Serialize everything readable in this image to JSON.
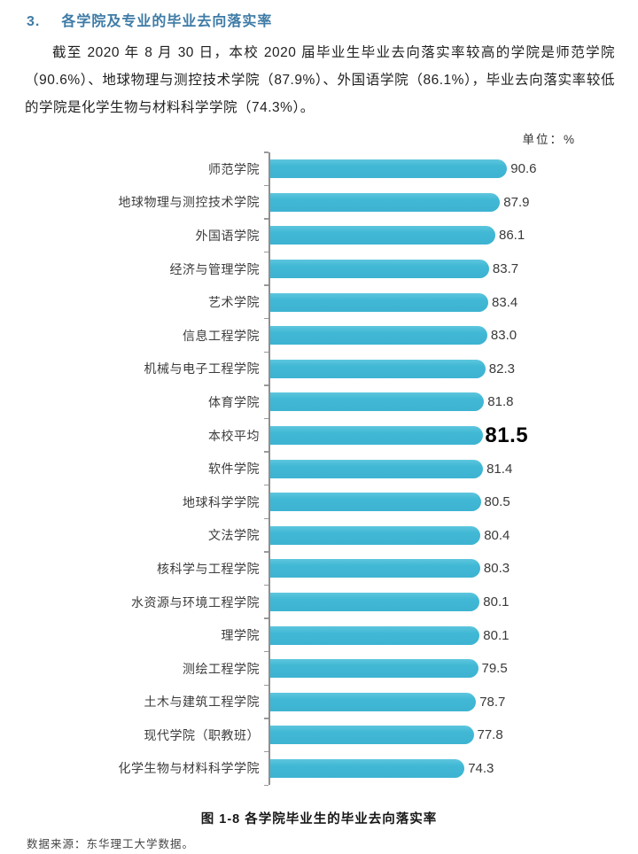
{
  "heading": {
    "number": "3.",
    "title": "各学院及专业的毕业去向落实率"
  },
  "paragraph": "截至 2020 年 8 月 30 日，本校 2020 届毕业生毕业去向落实率较高的学院是师范学院（90.6%）、地球物理与测控技术学院（87.9%）、外国语学院（86.1%），毕业去向落实率较低的学院是化学生物与材料科学学院（74.3%）。",
  "unit_label": "单位：%",
  "caption": "图 1-8 各学院毕业生的毕业去向落实率",
  "source": "数据来源：东华理工大学数据。",
  "colors": {
    "heading_blue": "#3e7ba6",
    "bar_cyan": "#41b8d5",
    "axis_gray": "#8f8f8f",
    "highlight_value": "#000000"
  },
  "chart_data": {
    "type": "bar",
    "orientation": "horizontal",
    "title": "图 1-8 各学院毕业生的毕业去向落实率",
    "unit": "%",
    "xlim": [
      0,
      95
    ],
    "grid": false,
    "legend": false,
    "bar_color": "#41b8d5",
    "highlight_index": 8,
    "highlight_category": "本校平均",
    "categories": [
      "师范学院",
      "地球物理与测控技术学院",
      "外国语学院",
      "经济与管理学院",
      "艺术学院",
      "信息工程学院",
      "机械与电子工程学院",
      "体育学院",
      "本校平均",
      "软件学院",
      "地球科学学院",
      "文法学院",
      "核科学与工程学院",
      "水资源与环境工程学院",
      "理学院",
      "测绘工程学院",
      "土木与建筑工程学院",
      "现代学院（职教班）",
      "化学生物与材料科学学院"
    ],
    "values": [
      90.6,
      87.9,
      86.1,
      83.7,
      83.4,
      83.0,
      82.3,
      81.8,
      81.5,
      81.4,
      80.5,
      80.4,
      80.3,
      80.1,
      80.1,
      79.5,
      78.7,
      77.8,
      74.3
    ]
  }
}
